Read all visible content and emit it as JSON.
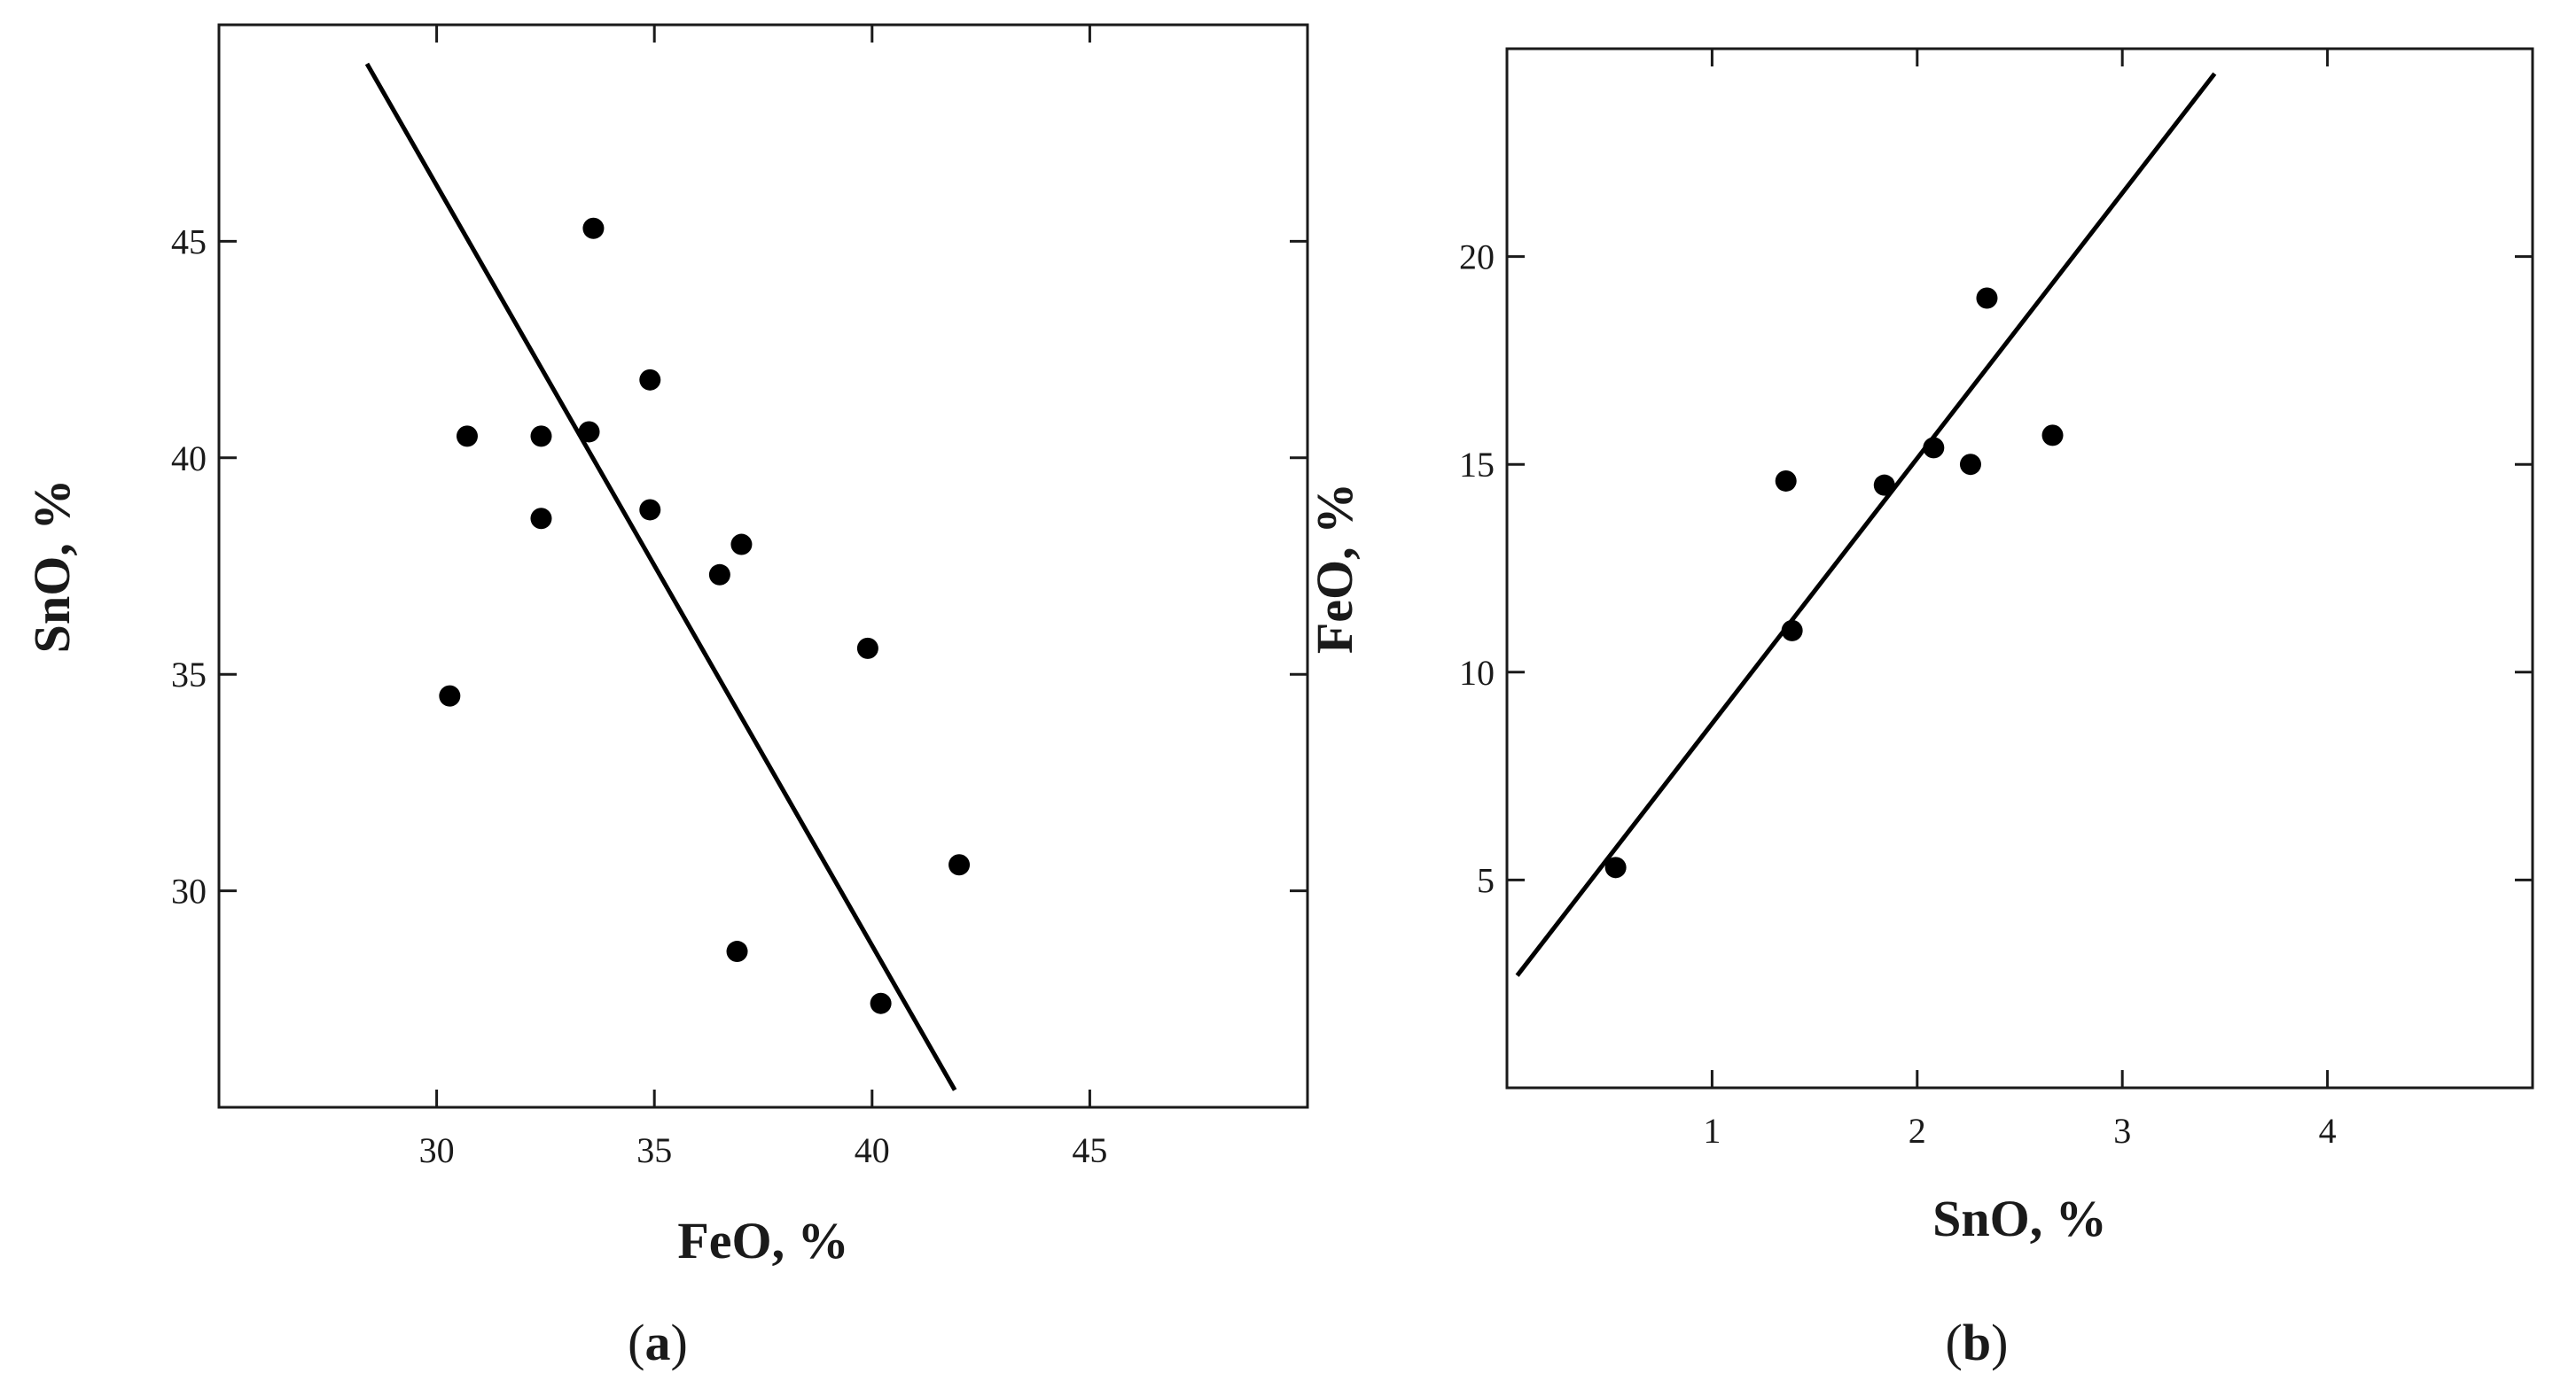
{
  "chart_data": [
    {
      "type": "scatter",
      "panel_label": {
        "open": "(",
        "letter": "a",
        "close": ")"
      },
      "xlabel": "FeO, %",
      "ylabel": "SnO, %",
      "xlim": [
        25,
        50
      ],
      "ylim": [
        25,
        50
      ],
      "xticks": [
        30,
        35,
        40,
        45
      ],
      "yticks": [
        30,
        35,
        40,
        45
      ],
      "grid": false,
      "points": [
        {
          "x": 30.3,
          "y": 34.5
        },
        {
          "x": 30.7,
          "y": 40.5
        },
        {
          "x": 32.4,
          "y": 40.5
        },
        {
          "x": 32.4,
          "y": 38.6
        },
        {
          "x": 33.5,
          "y": 40.6
        },
        {
          "x": 33.6,
          "y": 45.3
        },
        {
          "x": 34.9,
          "y": 41.8
        },
        {
          "x": 34.9,
          "y": 38.8
        },
        {
          "x": 36.5,
          "y": 37.3
        },
        {
          "x": 37.0,
          "y": 38.0
        },
        {
          "x": 36.9,
          "y": 28.6
        },
        {
          "x": 39.9,
          "y": 35.6
        },
        {
          "x": 40.2,
          "y": 27.4
        },
        {
          "x": 42.0,
          "y": 30.6
        }
      ],
      "trend_line": {
        "x": [
          28.4,
          41.9
        ],
        "y": [
          49.1,
          25.4
        ]
      }
    },
    {
      "type": "scatter",
      "panel_label": {
        "open": "(",
        "letter": "b",
        "close": ")"
      },
      "xlabel": "SnO, %",
      "ylabel": "FeO, %",
      "xlim": [
        0,
        5
      ],
      "ylim": [
        0,
        25
      ],
      "xticks": [
        1,
        2,
        3,
        4
      ],
      "yticks": [
        5,
        10,
        15,
        20
      ],
      "grid": false,
      "points": [
        {
          "x": 0.53,
          "y": 5.3
        },
        {
          "x": 1.36,
          "y": 14.6
        },
        {
          "x": 1.39,
          "y": 11.0
        },
        {
          "x": 1.84,
          "y": 14.5
        },
        {
          "x": 2.08,
          "y": 15.4
        },
        {
          "x": 2.26,
          "y": 15.0
        },
        {
          "x": 2.34,
          "y": 19.0
        },
        {
          "x": 2.66,
          "y": 15.7
        }
      ],
      "trend_line": {
        "x": [
          0.05,
          3.45
        ],
        "y": [
          2.7,
          24.4
        ]
      }
    }
  ]
}
